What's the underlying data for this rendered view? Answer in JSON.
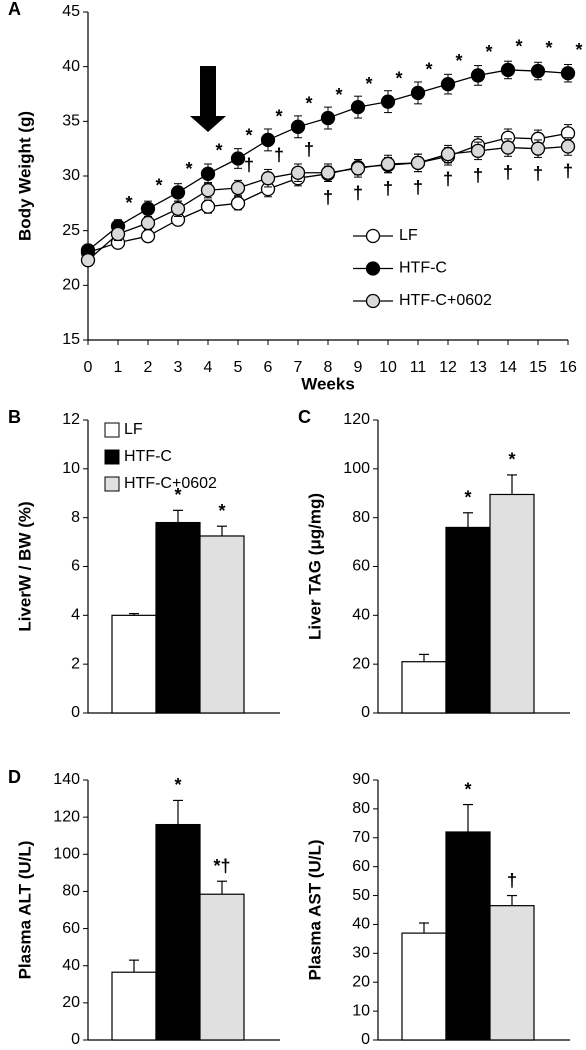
{
  "chart_data": [
    {
      "type": "line",
      "panel": "A",
      "xlabel": "Weeks",
      "ylabel": "Body Weight (g)",
      "x": [
        0,
        1,
        2,
        3,
        4,
        5,
        6,
        7,
        8,
        9,
        10,
        11,
        12,
        13,
        14,
        15,
        16
      ],
      "xlim": [
        0,
        16
      ],
      "xticks": [
        0,
        1,
        2,
        3,
        4,
        5,
        6,
        7,
        8,
        9,
        10,
        11,
        12,
        13,
        14,
        15,
        16
      ],
      "ylim": [
        15,
        45
      ],
      "yticks": [
        15,
        20,
        25,
        30,
        35,
        40,
        45
      ],
      "legend": "lower right",
      "series": [
        {
          "name": "LF",
          "color": "#ffffff",
          "values": [
            23.0,
            23.9,
            24.5,
            26.0,
            27.2,
            27.5,
            28.8,
            29.8,
            30.2,
            30.8,
            31.0,
            31.2,
            31.8,
            32.8,
            33.5,
            33.4,
            33.9
          ],
          "errors": [
            0.5,
            0.5,
            0.5,
            0.5,
            0.6,
            0.6,
            0.7,
            0.7,
            0.7,
            0.7,
            0.7,
            0.8,
            0.8,
            0.8,
            0.8,
            0.8,
            0.8
          ]
        },
        {
          "name": "HTF-C",
          "color": "#000000",
          "values": [
            23.2,
            25.4,
            27.0,
            28.5,
            30.2,
            31.6,
            33.3,
            34.5,
            35.3,
            36.3,
            36.8,
            37.6,
            38.4,
            39.2,
            39.7,
            39.6,
            39.4
          ],
          "errors": [
            0.5,
            0.6,
            0.7,
            0.8,
            0.9,
            0.9,
            1.0,
            1.0,
            1.0,
            1.0,
            1.0,
            1.0,
            0.9,
            0.9,
            0.8,
            0.8,
            0.8
          ],
          "sig": [
            null,
            "*",
            "*",
            "*",
            "*",
            "*",
            "*",
            "*",
            "*",
            "*",
            "*",
            "*",
            "*",
            "*",
            "*",
            "*",
            "*"
          ]
        },
        {
          "name": "HTF-C+0602",
          "color": "#d9d9d9",
          "values": [
            22.3,
            24.7,
            25.7,
            27.0,
            28.7,
            28.9,
            29.8,
            30.3,
            30.3,
            30.7,
            31.1,
            31.2,
            32.0,
            32.3,
            32.6,
            32.5,
            32.7
          ],
          "errors": [
            0.5,
            0.6,
            0.6,
            0.7,
            0.7,
            0.7,
            0.8,
            0.8,
            0.8,
            0.8,
            0.8,
            0.8,
            0.8,
            0.8,
            0.8,
            0.8,
            0.8
          ],
          "sig": [
            null,
            null,
            null,
            null,
            null,
            "†",
            "†",
            "†",
            "†",
            "†",
            "†",
            "†",
            "†",
            "†",
            "†",
            "†",
            "†"
          ]
        }
      ]
    },
    {
      "type": "bar",
      "panel": "B",
      "ylabel": "LiverW / BW (%)",
      "categories": [
        "LF",
        "HTF-C",
        "HTF-C+0602"
      ],
      "colors": [
        "#ffffff",
        "#000000",
        "#e0e0e0"
      ],
      "values": [
        4.0,
        7.8,
        7.25
      ],
      "errors": [
        0.07,
        0.5,
        0.4
      ],
      "sig": [
        null,
        "*",
        "*"
      ],
      "ylim": [
        0,
        12
      ],
      "yticks": [
        0,
        2,
        4,
        6,
        8,
        10,
        12
      ],
      "legend": "upper left"
    },
    {
      "type": "bar",
      "panel": "C",
      "ylabel": "Liver TAG (μg/mg)",
      "colors": [
        "#ffffff",
        "#000000",
        "#e0e0e0"
      ],
      "values": [
        21,
        76,
        89.5
      ],
      "errors": [
        3,
        6,
        8
      ],
      "sig": [
        null,
        "*",
        "*"
      ],
      "ylim": [
        0,
        120
      ],
      "yticks": [
        0,
        20,
        40,
        60,
        80,
        100,
        120
      ]
    },
    {
      "type": "bar",
      "panel": "D",
      "ylabel": "Plasma ALT (U/L)",
      "colors": [
        "#ffffff",
        "#000000",
        "#e0e0e0"
      ],
      "values": [
        36.5,
        116,
        78.5
      ],
      "errors": [
        6.5,
        13,
        7
      ],
      "sig": [
        null,
        "*",
        "*†"
      ],
      "ylim": [
        0,
        140
      ],
      "yticks": [
        0,
        20,
        40,
        60,
        80,
        100,
        120,
        140
      ]
    },
    {
      "type": "bar",
      "ylabel": "Plasma AST (U/L)",
      "colors": [
        "#ffffff",
        "#000000",
        "#e0e0e0"
      ],
      "values": [
        37,
        72,
        46.5
      ],
      "errors": [
        3.5,
        9.5,
        3.5
      ],
      "sig": [
        null,
        "*",
        "†"
      ],
      "ylim": [
        0,
        90
      ],
      "yticks": [
        0,
        10,
        20,
        30,
        40,
        50,
        60,
        70,
        80,
        90
      ]
    }
  ]
}
